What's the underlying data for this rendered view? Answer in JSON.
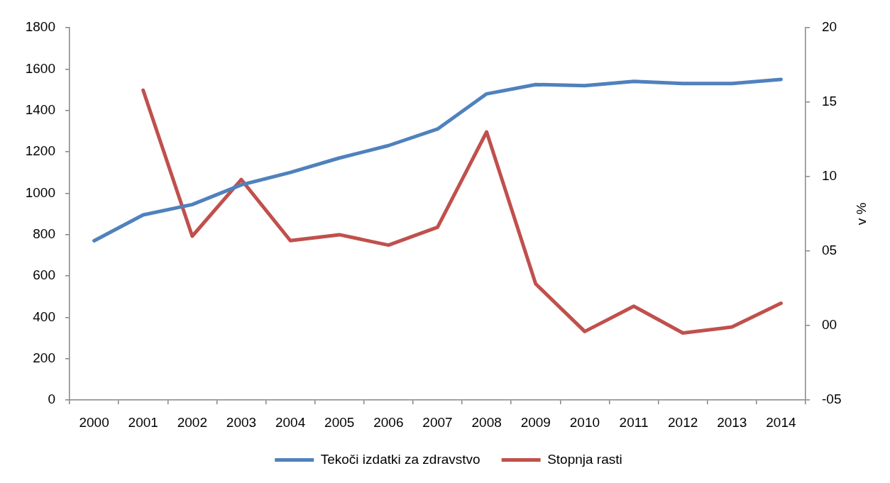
{
  "chart_data": {
    "type": "line",
    "categories": [
      "2000",
      "2001",
      "2002",
      "2003",
      "2004",
      "2005",
      "2006",
      "2007",
      "2008",
      "2009",
      "2010",
      "2011",
      "2012",
      "2013",
      "2014"
    ],
    "series": [
      {
        "name": "Tekoči izdatki za zdravstvo",
        "color": "#4f81bd",
        "values": [
          770,
          895,
          945,
          1040,
          1100,
          1170,
          1230,
          1310,
          1480,
          1525,
          1520,
          1540,
          1530,
          1530,
          1550
        ]
      },
      {
        "name": "Stopnja rasti",
        "color": "#c0504d",
        "axis": "y2",
        "values": [
          null,
          15.8,
          6.0,
          9.8,
          5.7,
          6.1,
          5.4,
          6.6,
          13.0,
          2.8,
          -0.4,
          1.3,
          -0.5,
          -0.1,
          1.5
        ]
      }
    ],
    "ylim": [
      0,
      1800
    ],
    "yticks": [
      0,
      200,
      400,
      600,
      800,
      1000,
      1200,
      1400,
      1600,
      1800
    ],
    "y2lim": [
      -5,
      20
    ],
    "y2ticks": [
      {
        "value": -5,
        "label": "-05"
      },
      {
        "value": 0,
        "label": "00"
      },
      {
        "value": 5,
        "label": "05"
      },
      10,
      15,
      20
    ],
    "y2label": "v %",
    "grid": false,
    "legend": "bottom",
    "marker": "none",
    "line_style": "solid"
  }
}
